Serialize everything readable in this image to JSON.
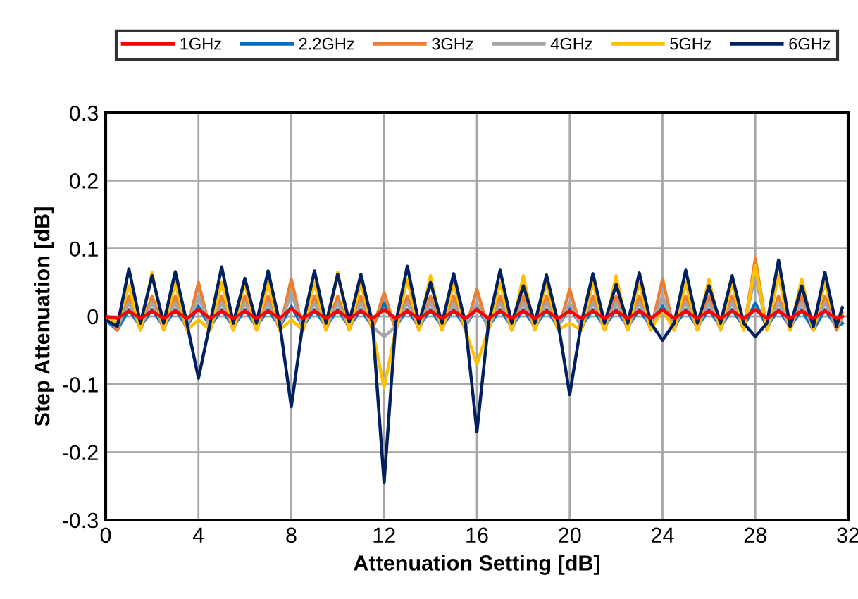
{
  "chart_data": {
    "type": "line",
    "xlabel": "Attenuation Setting [dB]",
    "ylabel": "Step Attenuation [dB]",
    "x": [
      0,
      0.5,
      1,
      1.5,
      2,
      2.5,
      3,
      3.5,
      4,
      4.5,
      5,
      5.5,
      6,
      6.5,
      7,
      7.5,
      8,
      8.5,
      9,
      9.5,
      10,
      10.5,
      11,
      11.5,
      12,
      12.5,
      13,
      13.5,
      14,
      14.5,
      15,
      15.5,
      16,
      16.5,
      17,
      17.5,
      18,
      18.5,
      19,
      19.5,
      20,
      20.5,
      21,
      21.5,
      22,
      22.5,
      23,
      23.5,
      24,
      24.5,
      25,
      25.5,
      26,
      26.5,
      27,
      27.5,
      28,
      28.5,
      29,
      29.5,
      30,
      30.5,
      31,
      31.5,
      31.75
    ],
    "xlim": [
      0,
      32
    ],
    "xticks": [
      0,
      4,
      8,
      12,
      16,
      20,
      24,
      28,
      32
    ],
    "ylim": [
      -0.3,
      0.3
    ],
    "yticks": [
      -0.3,
      -0.2,
      -0.1,
      0,
      0.1,
      0.2,
      0.3
    ],
    "grid": true,
    "legend": "top",
    "marker": "none",
    "line_style": "solid",
    "series": [
      {
        "name": "1GHz",
        "color": "#ff0000",
        "values": [
          0,
          -0.003,
          0.008,
          -0.003,
          0.008,
          -0.003,
          0.008,
          -0.003,
          0.01,
          -0.003,
          0.008,
          -0.003,
          0.008,
          -0.003,
          0.008,
          -0.003,
          0.012,
          -0.003,
          0.008,
          -0.003,
          0.008,
          -0.003,
          0.008,
          -0.003,
          0.01,
          -0.003,
          0.008,
          -0.003,
          0.008,
          -0.003,
          0.008,
          -0.003,
          0.01,
          -0.003,
          0.008,
          -0.003,
          0.008,
          -0.003,
          0.008,
          -0.003,
          0.008,
          -0.003,
          0.008,
          -0.003,
          0.008,
          -0.003,
          0.008,
          -0.003,
          0.01,
          -0.003,
          0.008,
          -0.003,
          0.008,
          -0.003,
          0.008,
          -0.003,
          0.01,
          -0.003,
          0.008,
          -0.003,
          0.008,
          -0.003,
          0.008,
          -0.003,
          0
        ]
      },
      {
        "name": "2.2GHz",
        "color": "#0070c0",
        "values": [
          -0.005,
          -0.02,
          0.01,
          -0.015,
          0.01,
          -0.015,
          0.01,
          -0.015,
          0.015,
          -0.015,
          0.01,
          -0.015,
          0.01,
          -0.015,
          0.01,
          -0.015,
          0.015,
          -0.015,
          0.01,
          -0.015,
          0.01,
          -0.015,
          0.01,
          -0.015,
          0.02,
          -0.015,
          0.01,
          -0.015,
          0.01,
          -0.015,
          0.01,
          -0.015,
          0.015,
          -0.015,
          0.01,
          -0.015,
          0.01,
          -0.015,
          0.01,
          -0.015,
          0.015,
          -0.015,
          0.01,
          -0.015,
          0.01,
          -0.015,
          0.01,
          -0.015,
          0.015,
          -0.015,
          0.01,
          -0.015,
          0.01,
          -0.015,
          0.01,
          -0.015,
          0.02,
          -0.015,
          0.01,
          -0.015,
          0.01,
          -0.02,
          0.01,
          -0.015,
          -0.01
        ]
      },
      {
        "name": "3GHz",
        "color": "#ed7d31",
        "values": [
          0,
          -0.02,
          0.03,
          -0.02,
          0.03,
          -0.02,
          0.03,
          -0.02,
          0.05,
          -0.02,
          0.03,
          -0.02,
          0.03,
          -0.02,
          0.03,
          -0.02,
          0.055,
          -0.02,
          0.03,
          -0.02,
          0.03,
          -0.02,
          0.03,
          -0.02,
          0.035,
          -0.02,
          0.03,
          -0.02,
          0.03,
          -0.02,
          0.03,
          -0.02,
          0.04,
          -0.02,
          0.03,
          -0.02,
          0.03,
          -0.02,
          0.03,
          -0.02,
          0.04,
          -0.02,
          0.03,
          -0.02,
          0.03,
          -0.02,
          0.03,
          -0.02,
          0.055,
          -0.02,
          0.03,
          -0.02,
          0.03,
          -0.02,
          0.03,
          -0.02,
          0.085,
          -0.02,
          0.03,
          -0.02,
          0.03,
          -0.02,
          0.03,
          -0.02,
          0
        ]
      },
      {
        "name": "4GHz",
        "color": "#a5a5a5",
        "values": [
          0,
          -0.015,
          0.02,
          -0.015,
          0.02,
          -0.015,
          0.02,
          -0.015,
          0.03,
          -0.015,
          0.02,
          -0.015,
          0.02,
          -0.015,
          0.02,
          -0.015,
          0.035,
          -0.015,
          0.02,
          -0.015,
          0.02,
          -0.015,
          0.02,
          -0.015,
          -0.03,
          -0.015,
          0.02,
          -0.015,
          0.02,
          -0.015,
          0.02,
          -0.015,
          0.02,
          -0.015,
          0.02,
          -0.015,
          0.02,
          -0.015,
          0.02,
          -0.015,
          0.02,
          -0.015,
          0.02,
          -0.015,
          0.02,
          -0.015,
          0.02,
          -0.015,
          0.03,
          -0.015,
          0.02,
          -0.015,
          0.02,
          -0.015,
          0.02,
          -0.015,
          0.06,
          -0.015,
          0.02,
          -0.015,
          0.02,
          -0.015,
          0.02,
          -0.015,
          0
        ]
      },
      {
        "name": "5GHz",
        "color": "#ffc000",
        "values": [
          0,
          -0.01,
          0.045,
          -0.02,
          0.065,
          -0.02,
          0.05,
          -0.02,
          -0.005,
          -0.02,
          0.05,
          -0.02,
          0.048,
          -0.02,
          0.05,
          -0.02,
          -0.005,
          -0.02,
          0.05,
          -0.02,
          0.065,
          -0.02,
          0.05,
          -0.02,
          -0.105,
          -0.02,
          0.055,
          -0.02,
          0.06,
          -0.02,
          0.05,
          -0.02,
          -0.07,
          -0.02,
          0.05,
          -0.02,
          0.06,
          -0.02,
          0.05,
          -0.02,
          -0.01,
          -0.02,
          0.05,
          -0.02,
          0.06,
          -0.02,
          0.05,
          -0.02,
          0.01,
          -0.02,
          0.05,
          -0.02,
          0.055,
          -0.02,
          0.05,
          -0.02,
          0.075,
          -0.02,
          0.06,
          -0.02,
          0.055,
          -0.02,
          0.05,
          -0.015,
          0.005
        ]
      },
      {
        "name": "6GHz",
        "color": "#002060",
        "values": [
          -0.005,
          -0.015,
          0.07,
          -0.01,
          0.06,
          -0.01,
          0.066,
          -0.01,
          -0.091,
          -0.01,
          0.073,
          -0.01,
          0.056,
          -0.01,
          0.067,
          -0.01,
          -0.133,
          -0.01,
          0.067,
          -0.01,
          0.062,
          -0.008,
          0.062,
          -0.01,
          -0.245,
          -0.01,
          0.074,
          -0.01,
          0.05,
          -0.01,
          0.063,
          -0.01,
          -0.17,
          -0.01,
          0.068,
          -0.01,
          0.045,
          -0.01,
          0.061,
          -0.01,
          -0.115,
          -0.01,
          0.063,
          -0.01,
          0.047,
          -0.01,
          0.064,
          -0.01,
          -0.035,
          -0.01,
          0.068,
          -0.01,
          0.045,
          -0.01,
          0.06,
          -0.01,
          -0.03,
          -0.01,
          0.083,
          -0.015,
          0.045,
          -0.015,
          0.065,
          -0.015,
          0.013
        ]
      }
    ]
  }
}
